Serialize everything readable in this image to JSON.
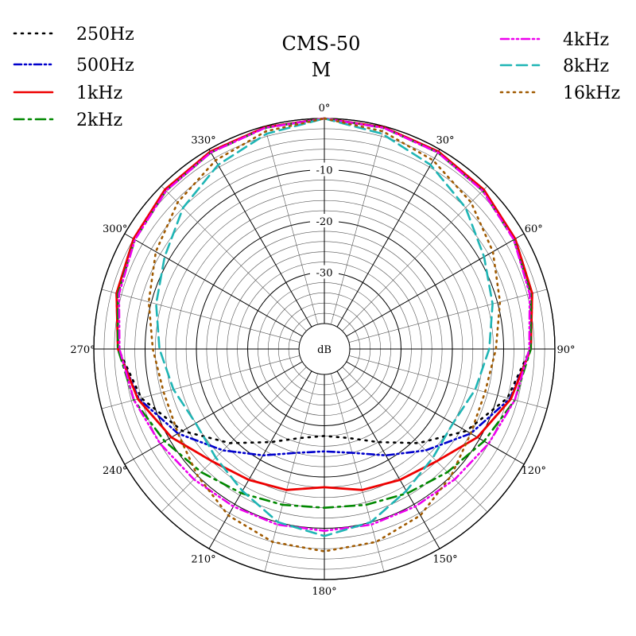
{
  "chart_data": {
    "type": "polar",
    "title": "CMS-50",
    "subtitle": "M",
    "radial_axis": {
      "unit_label": "dB",
      "range": [
        -40,
        0
      ],
      "ticks": [
        -10,
        -20,
        -30
      ],
      "tick_labels": [
        "-10",
        "-20",
        "-30"
      ]
    },
    "angular_axis": {
      "direction": "clockwise",
      "zero_at": "top",
      "ticks": [
        0,
        30,
        60,
        90,
        120,
        150,
        180,
        210,
        240,
        270,
        300,
        330
      ],
      "tick_labels": [
        "0°",
        "30°",
        "60°",
        "90°",
        "120°",
        "150°",
        "180°",
        "210°",
        "240°",
        "270°",
        "300°",
        "330°"
      ]
    },
    "grid": true,
    "legend_placement": "top-left and top-right",
    "angles": [
      0,
      15,
      30,
      45,
      60,
      75,
      90,
      105,
      120,
      135,
      150,
      165,
      180
    ],
    "series": [
      {
        "name": "250Hz",
        "color": "#000000",
        "dash": "2 7",
        "values": [
          0,
          -0.2,
          -0.5,
          -1,
          -2,
          -3,
          -4.8,
          -8,
          -13,
          -19,
          -24,
          -27,
          -28
        ]
      },
      {
        "name": "500Hz",
        "color": "#0000cc",
        "dash": "9 4 2 4 2 4",
        "values": [
          0,
          -0.2,
          -0.5,
          -1,
          -2,
          -3,
          -4.7,
          -7.5,
          -12,
          -17,
          -21,
          -24,
          -25
        ]
      },
      {
        "name": "1kHz",
        "color": "#ee0000",
        "dash": "",
        "values": [
          0,
          -0.2,
          -0.5,
          -1,
          -2,
          -3,
          -4.7,
          -7.3,
          -10.5,
          -14,
          -15.5,
          -16.5,
          -18
        ]
      },
      {
        "name": "2kHz",
        "color": "#008800",
        "dash": "12 6 3 6",
        "values": [
          0,
          -0.3,
          -0.7,
          -1.3,
          -2.3,
          -3.3,
          -4.7,
          -6.5,
          -9,
          -11,
          -12.5,
          -13.5,
          -14
        ]
      },
      {
        "name": "4kHz",
        "color": "#ee00ee",
        "dash": "10 4 2 4 2 4",
        "values": [
          0,
          -0.3,
          -0.7,
          -1.3,
          -2.3,
          -3.5,
          -5,
          -6.5,
          -8,
          -9,
          -9.5,
          -9.5,
          -9.5
        ]
      },
      {
        "name": "8kHz",
        "color": "#1fb5b5",
        "dash": "13 7",
        "values": [
          0,
          -1.5,
          -3.5,
          -6,
          -9,
          -11,
          -12.8,
          -14.5,
          -16,
          -15,
          -13,
          -10,
          -8.5
        ]
      },
      {
        "name": "16kHz",
        "color": "#a05a00",
        "dash": "2 6",
        "values": [
          0,
          -1,
          -2.5,
          -4.5,
          -7,
          -9.5,
          -11.5,
          -12.5,
          -12,
          -10,
          -7.5,
          -6,
          -5.5
        ]
      }
    ]
  }
}
